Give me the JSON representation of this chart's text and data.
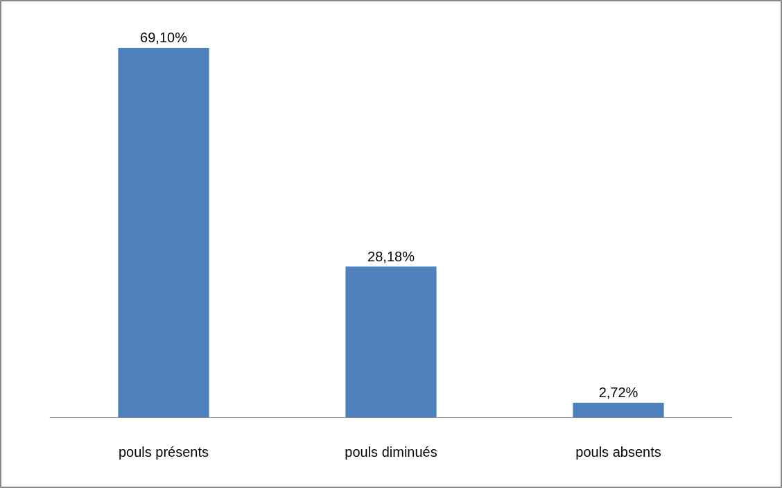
{
  "chart_data": {
    "type": "bar",
    "categories": [
      "pouls présents",
      "pouls diminués",
      "pouls absents"
    ],
    "values": [
      69.1,
      28.18,
      2.72
    ],
    "value_labels": [
      "69,10%",
      "28,18%",
      "2,72%"
    ],
    "color": "#4f81bd"
  }
}
